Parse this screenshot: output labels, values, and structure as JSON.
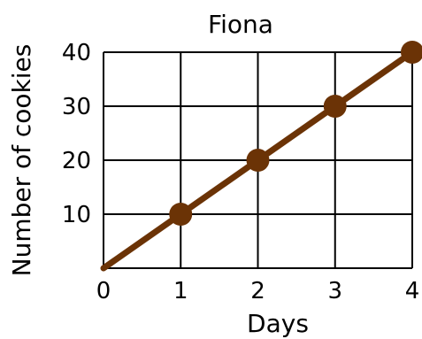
{
  "chart_data": {
    "type": "line",
    "title": "Fiona",
    "xlabel": "Days",
    "ylabel": "Number of cookies",
    "x": [
      0,
      1,
      2,
      3,
      4
    ],
    "series": [
      {
        "values": [
          0,
          10,
          20,
          30,
          40
        ]
      }
    ],
    "xlim": [
      0,
      4
    ],
    "ylim": [
      0,
      40
    ],
    "xticks": [
      "0",
      "1",
      "2",
      "3",
      "4"
    ],
    "yticks": [
      "10",
      "20",
      "30",
      "40"
    ],
    "grid": true,
    "colors": {
      "line": "#6b3306",
      "grid": "#000000"
    }
  }
}
